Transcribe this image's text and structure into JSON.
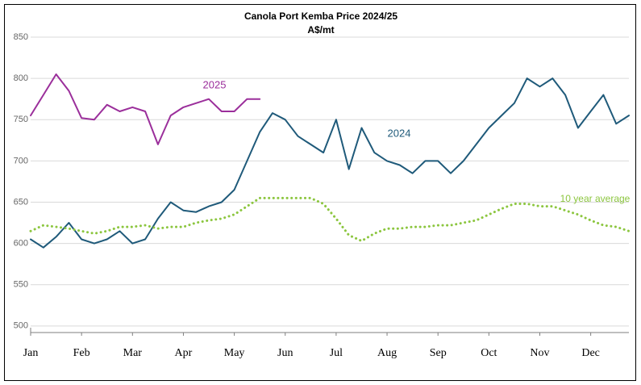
{
  "chart_data": {
    "type": "line",
    "title": "Canola Port Kemba Price 2024/25",
    "subtitle": "A$/mt",
    "x": [
      0,
      0.25,
      0.5,
      0.75,
      1,
      1.25,
      1.5,
      1.75,
      2,
      2.25,
      2.5,
      2.75,
      3,
      3.25,
      3.5,
      3.75,
      4,
      4.25,
      4.5,
      4.75,
      5,
      5.25,
      5.5,
      5.75,
      6,
      6.25,
      6.5,
      6.75,
      7,
      7.25,
      7.5,
      7.75,
      8,
      8.25,
      8.5,
      8.75,
      9,
      9.25,
      9.5,
      9.75,
      10,
      10.25,
      10.5,
      10.75,
      11,
      11.25,
      11.5,
      11.75
    ],
    "xlim": [
      0,
      11.75
    ],
    "xticks": [
      {
        "value": 0,
        "label": "Jan"
      },
      {
        "value": 1,
        "label": "Feb"
      },
      {
        "value": 2,
        "label": "Mar"
      },
      {
        "value": 3,
        "label": "Apr"
      },
      {
        "value": 4,
        "label": "May"
      },
      {
        "value": 5,
        "label": "Jun"
      },
      {
        "value": 6,
        "label": "Jul"
      },
      {
        "value": 7,
        "label": "Aug"
      },
      {
        "value": 8,
        "label": "Sep"
      },
      {
        "value": 9,
        "label": "Oct"
      },
      {
        "value": 10,
        "label": "Nov"
      },
      {
        "value": 11,
        "label": "Dec"
      }
    ],
    "ylim": [
      492,
      850
    ],
    "yticks": [
      500,
      550,
      600,
      650,
      700,
      750,
      800,
      850
    ],
    "grid": true,
    "series": [
      {
        "name": "2024",
        "color": "#1f5a7a",
        "style": "solid",
        "values": [
          605,
          595,
          608,
          625,
          605,
          600,
          605,
          615,
          600,
          605,
          630,
          650,
          640,
          638,
          645,
          650,
          665,
          700,
          735,
          758,
          750,
          730,
          720,
          710,
          750,
          690,
          740,
          710,
          700,
          695,
          685,
          700,
          700,
          685,
          700,
          720,
          740,
          755,
          770,
          800,
          790,
          800,
          780,
          740,
          760,
          780,
          745,
          755
        ]
      },
      {
        "name": "2025",
        "color": "#9b2f9b",
        "style": "solid",
        "values": [
          755,
          780,
          805,
          785,
          752,
          750,
          768,
          760,
          765,
          760,
          720,
          755,
          765,
          770,
          775,
          760,
          760,
          775,
          775,
          null,
          null,
          null,
          null,
          null,
          null,
          null,
          null,
          null,
          null,
          null,
          null,
          null,
          null,
          null,
          null,
          null,
          null,
          null,
          null,
          null,
          null,
          null,
          null,
          null,
          null,
          null,
          null,
          null
        ]
      },
      {
        "name": "10 year average",
        "color": "#8cc63f",
        "style": "dotted",
        "values": [
          615,
          622,
          620,
          618,
          615,
          612,
          615,
          620,
          620,
          622,
          618,
          620,
          620,
          625,
          628,
          630,
          635,
          645,
          655,
          655,
          655,
          655,
          655,
          648,
          630,
          610,
          603,
          612,
          618,
          618,
          620,
          620,
          622,
          622,
          625,
          628,
          635,
          642,
          648,
          648,
          645,
          645,
          640,
          635,
          628,
          622,
          620,
          615
        ]
      }
    ]
  }
}
